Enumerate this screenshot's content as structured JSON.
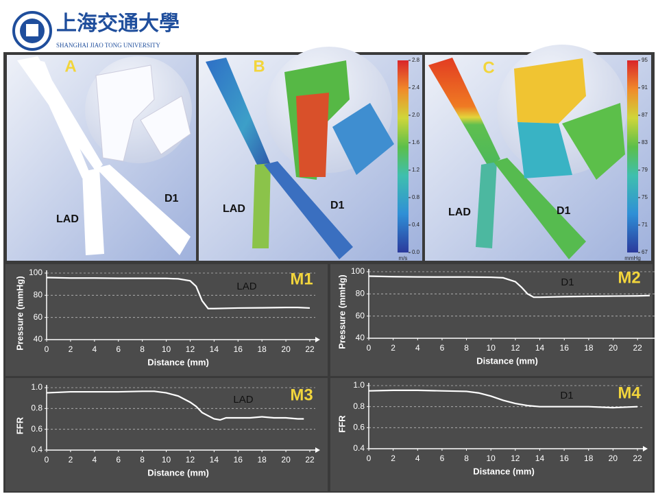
{
  "header": {
    "name": "上海交通大學",
    "name_en": "SHANGHAI JIAO TONG UNIVERSITY"
  },
  "panels": [
    {
      "label": "A",
      "vessels": [
        "LAD",
        "D1"
      ]
    },
    {
      "label": "B",
      "vessels": [
        "LAD",
        "D1"
      ],
      "colorbar": {
        "unit": "m/s",
        "lim": [
          0,
          2.8
        ],
        "ticks": [
          {
            "value": 0,
            "label": "0.0"
          },
          0.4,
          0.8,
          1.2,
          1.6,
          {
            "value": 2,
            "label": "2.0"
          },
          2.4,
          2.8
        ]
      }
    },
    {
      "label": "C",
      "vessels": [
        "LAD",
        "D1"
      ],
      "colorbar": {
        "unit": "mmHg",
        "lim": [
          67,
          95
        ],
        "ticks": [
          67,
          71,
          75,
          79,
          83,
          87,
          91,
          95
        ]
      }
    }
  ],
  "chart_data": [
    {
      "type": "line",
      "title": "M1",
      "annotation": "LAD",
      "xlabel": "Distance (mm)",
      "ylabel": "Pressure (mmHg)",
      "color": "#ffffff",
      "x": [
        0,
        2,
        4,
        6,
        8,
        10,
        11,
        12,
        12.5,
        13,
        13.5,
        14,
        16,
        18,
        20,
        21,
        22
      ],
      "values": [
        96,
        95.5,
        95.5,
        95.3,
        95.3,
        95.2,
        94.8,
        93,
        88,
        75,
        68,
        68,
        68.5,
        68.7,
        69,
        69,
        68.5
      ],
      "xlim": [
        0,
        22
      ],
      "ylim": [
        40,
        100
      ],
      "xticks": [
        0,
        2,
        4,
        6,
        8,
        10,
        12,
        14,
        16,
        18,
        20,
        22
      ],
      "yticks": [
        40,
        60,
        80,
        100
      ],
      "grid": true
    },
    {
      "type": "line",
      "title": "M2",
      "annotation": "D1",
      "xlabel": "Distance (mm)",
      "ylabel": "Pressure (mmHg)",
      "color": "#ffffff",
      "x": [
        0,
        2,
        4,
        6,
        8,
        10,
        11,
        12,
        12.5,
        13,
        13.5,
        14,
        16,
        18,
        20,
        22,
        23
      ],
      "values": [
        96,
        95.5,
        95.3,
        95.2,
        95.2,
        95,
        94.5,
        91,
        86,
        80,
        77,
        77,
        77.5,
        77.8,
        78,
        78.2,
        78.5
      ],
      "xlim": [
        0,
        23
      ],
      "ylim": [
        40,
        100
      ],
      "xticks": [
        0,
        2,
        4,
        6,
        8,
        10,
        12,
        14,
        16,
        18,
        20,
        22
      ],
      "yticks": [
        40,
        60,
        80,
        100
      ],
      "grid": true
    },
    {
      "type": "line",
      "title": "M3",
      "annotation": "LAD",
      "xlabel": "Distance (mm)",
      "ylabel": "FFR",
      "color": "#ffffff",
      "x": [
        0,
        2,
        4,
        6,
        8,
        9,
        10,
        11,
        12,
        12.5,
        13,
        13.5,
        14,
        14.5,
        15,
        16,
        17,
        18,
        19,
        20,
        21,
        21.5
      ],
      "values": [
        0.95,
        0.96,
        0.96,
        0.96,
        0.965,
        0.965,
        0.95,
        0.92,
        0.86,
        0.82,
        0.76,
        0.73,
        0.7,
        0.69,
        0.71,
        0.71,
        0.71,
        0.72,
        0.71,
        0.71,
        0.7,
        0.7
      ],
      "xlim": [
        0,
        22
      ],
      "ylim": [
        0.4,
        1
      ],
      "xticks": [
        0,
        2,
        4,
        6,
        8,
        10,
        12,
        14,
        16,
        18,
        20,
        22
      ],
      "yticks": [
        0.4,
        0.6,
        0.8,
        {
          "value": 1,
          "label": "1.0"
        }
      ],
      "grid": true
    },
    {
      "type": "line",
      "title": "M4",
      "annotation": "D1",
      "xlabel": "Distance (mm)",
      "ylabel": "FFR",
      "color": "#ffffff",
      "x": [
        0,
        2,
        4,
        6,
        8,
        9,
        10,
        11,
        12,
        13,
        14,
        16,
        18,
        20,
        21,
        22
      ],
      "values": [
        0.95,
        0.955,
        0.955,
        0.95,
        0.945,
        0.93,
        0.9,
        0.86,
        0.83,
        0.81,
        0.8,
        0.8,
        0.8,
        0.79,
        0.795,
        0.8
      ],
      "xlim": [
        0,
        22
      ],
      "ylim": [
        0.4,
        1
      ],
      "xticks": [
        0,
        2,
        4,
        6,
        8,
        10,
        12,
        14,
        16,
        18,
        20,
        22
      ],
      "yticks": [
        0.4,
        0.6,
        0.8,
        {
          "value": 1,
          "label": "1.0"
        }
      ],
      "grid": true
    }
  ]
}
